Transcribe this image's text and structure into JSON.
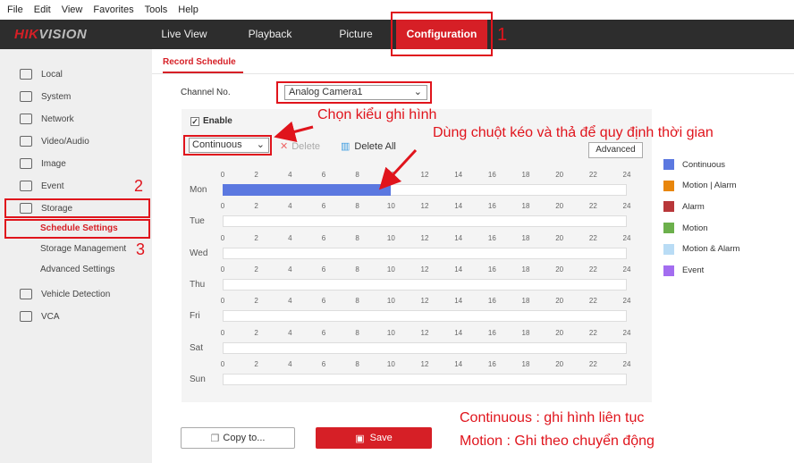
{
  "menubar": [
    "File",
    "Edit",
    "View",
    "Favorites",
    "Tools",
    "Help"
  ],
  "brand": {
    "logo_red": "HIK",
    "logo_rest": "VISION"
  },
  "nav": [
    "Live View",
    "Playback",
    "Picture",
    "Configuration"
  ],
  "nav_active": "Configuration",
  "sidebar": {
    "items": [
      {
        "label": "Local",
        "icon": "monitor-icon"
      },
      {
        "label": "System",
        "icon": "window-icon"
      },
      {
        "label": "Network",
        "icon": "globe-icon"
      },
      {
        "label": "Video/Audio",
        "icon": "microphone-icon"
      },
      {
        "label": "Image",
        "icon": "image-icon"
      },
      {
        "label": "Event",
        "icon": "calendar-icon"
      },
      {
        "label": "Storage",
        "icon": "floppy-icon"
      }
    ],
    "sub": [
      "Schedule Settings",
      "Storage Management",
      "Advanced Settings"
    ],
    "items2": [
      {
        "label": "Vehicle Detection",
        "icon": "car-icon"
      },
      {
        "label": "VCA",
        "icon": "vca-icon"
      }
    ]
  },
  "main": {
    "tab": "Record Schedule",
    "channel_label": "Channel No.",
    "channel_value": "Analog Camera1",
    "enable_label": "Enable",
    "enabled": true,
    "type_value": "Continuous",
    "delete": "Delete",
    "delete_all": "Delete All",
    "advanced": "Advanced",
    "copy": "Copy to...",
    "save": "Save"
  },
  "schedule": {
    "days": [
      "Mon",
      "Tue",
      "Wed",
      "Thu",
      "Fri",
      "Sat",
      "Sun"
    ],
    "ticks": [
      "0",
      "2",
      "4",
      "6",
      "8",
      "10",
      "12",
      "14",
      "16",
      "18",
      "20",
      "22",
      "24"
    ],
    "segments": [
      {
        "day": "Mon",
        "start": 0,
        "end": 10,
        "type": "Continuous"
      }
    ]
  },
  "legend": [
    {
      "label": "Continuous",
      "color": "#5b78e0"
    },
    {
      "label": "Motion | Alarm",
      "color": "#e8860c"
    },
    {
      "label": "Alarm",
      "color": "#b8373a"
    },
    {
      "label": "Motion",
      "color": "#6cb04c"
    },
    {
      "label": "Motion & Alarm",
      "color": "#b9dcf5"
    },
    {
      "label": "Event",
      "color": "#a36df0"
    }
  ],
  "annotations": {
    "n1": "1",
    "n2": "2",
    "n3": "3",
    "choose": "Chọn kiểu ghi hình",
    "drag": "Dùng chuột kéo và thả để quy định thời gian",
    "note1": "Continuous : ghi hình liên tục",
    "note2": "Motion : Ghi theo chuyển động"
  }
}
